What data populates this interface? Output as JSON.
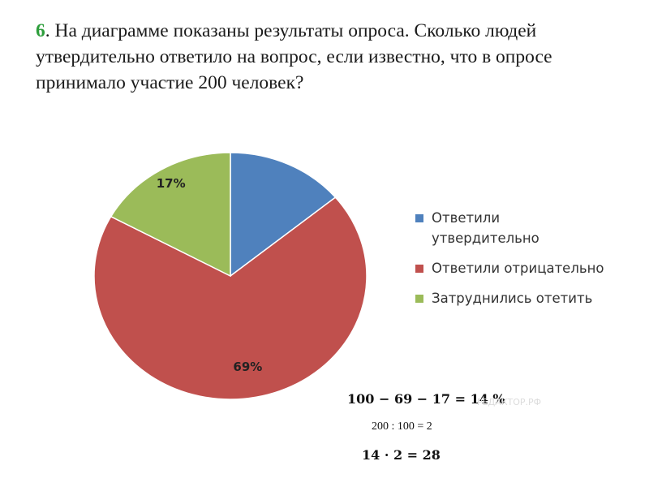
{
  "question": {
    "number": "6",
    "text": ". На диаграмме показаны результаты опроса. Сколько людей утвердительно ответило на вопрос, если известно, что в опросе принимало участие 200 человек?"
  },
  "chart_data": {
    "type": "pie",
    "title": "",
    "series": [
      {
        "name": "",
        "values": [
          14,
          69,
          17
        ]
      }
    ],
    "categories": [
      "Ответили утвердительно",
      "Ответили отрицательно",
      "Затруднились отетить"
    ],
    "data_labels": [
      "",
      "69%",
      "17%"
    ],
    "colors": [
      "#4f81bd",
      "#c0504d",
      "#9bbb59"
    ],
    "legend_position": "right"
  },
  "solution": {
    "line1": "100 − 69 − 17 = 14 %",
    "line2": "200 : 100 = 2",
    "line3": "14 · 2 = 28"
  },
  "watermark": "РЕДАКТОР.РФ"
}
